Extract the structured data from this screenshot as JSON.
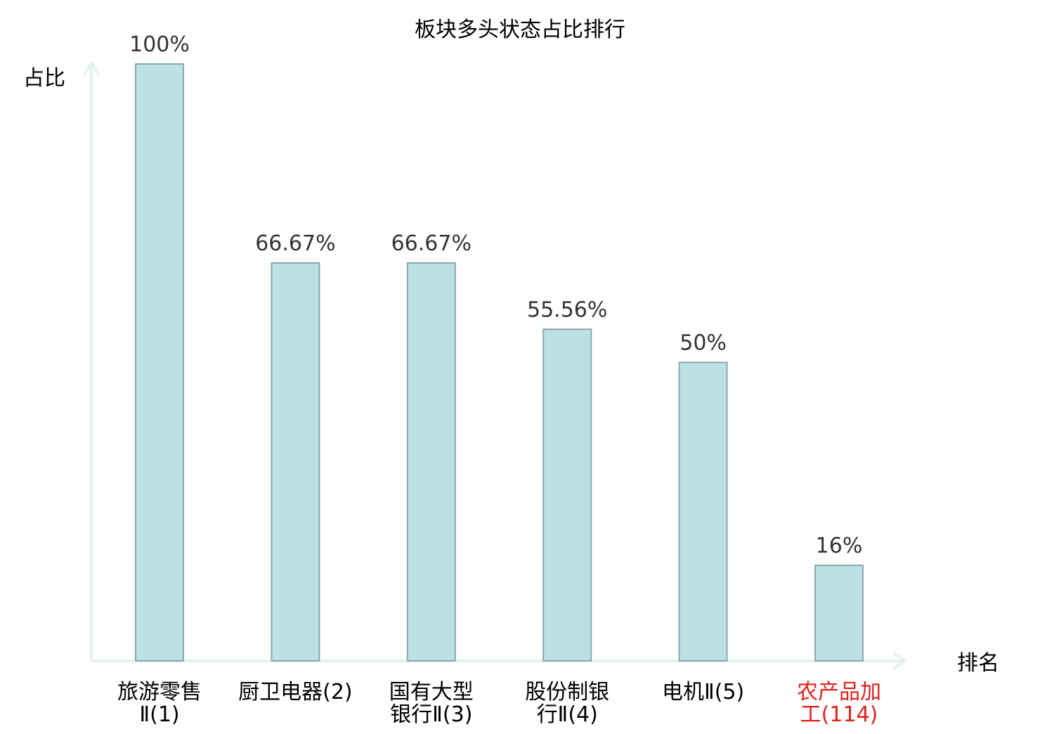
{
  "chart_data": {
    "type": "bar",
    "title": "板块多头状态占比排行",
    "ylabel": "占比",
    "xlabel": "排名",
    "ylim": [
      0,
      100
    ],
    "grid": false,
    "categories": [
      {
        "lines": [
          "旅游零售",
          "Ⅱ(1)"
        ],
        "highlight": false
      },
      {
        "lines": [
          "厨卫电器(2)"
        ],
        "highlight": false
      },
      {
        "lines": [
          "国有大型",
          "银行Ⅱ(3)"
        ],
        "highlight": false
      },
      {
        "lines": [
          "股份制银",
          "行Ⅱ(4)"
        ],
        "highlight": false
      },
      {
        "lines": [
          "电机Ⅱ(5)"
        ],
        "highlight": false
      },
      {
        "lines": [
          "农产品加",
          "工(114)"
        ],
        "highlight": true
      }
    ],
    "values": [
      100,
      66.67,
      66.67,
      55.56,
      50,
      16
    ],
    "value_labels": [
      "100%",
      "66.67%",
      "66.67%",
      "55.56%",
      "50%",
      "16%"
    ],
    "colors": {
      "bar_fill": "#bde0e3",
      "bar_stroke": "#8aa9ad",
      "axis": "#e3f2f0",
      "text": "#333333",
      "highlight": "#e0201b"
    }
  }
}
